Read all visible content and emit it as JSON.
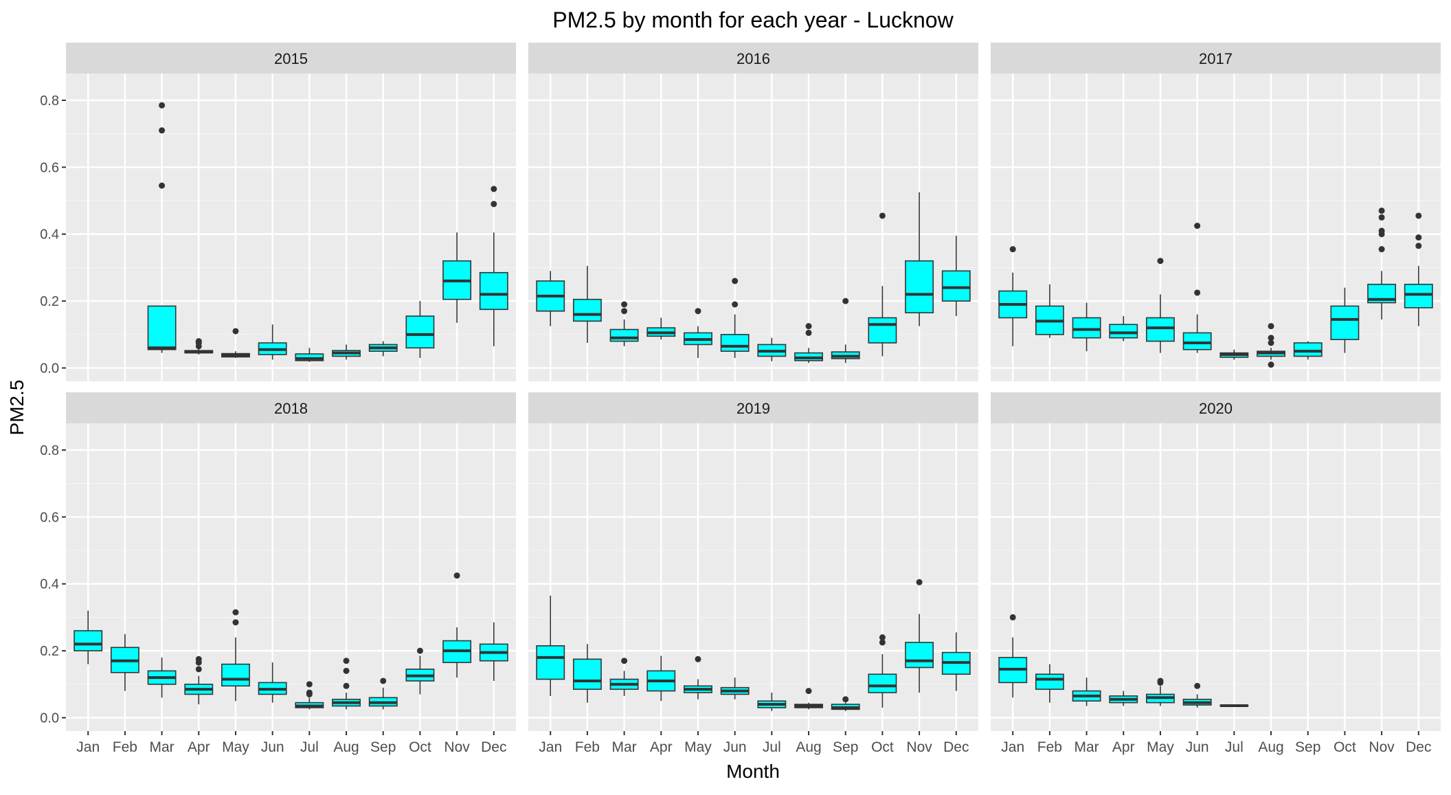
{
  "chart_data": {
    "type": "boxplot",
    "title": "PM2.5 by month for each year - Lucknow",
    "xlabel": "Month",
    "ylabel": "PM2.5",
    "categories": [
      "Jan",
      "Feb",
      "Mar",
      "Apr",
      "May",
      "Jun",
      "Jul",
      "Aug",
      "Sep",
      "Oct",
      "Nov",
      "Dec"
    ],
    "ylim": [
      -0.04,
      0.88
    ],
    "yticks": [
      0.0,
      0.2,
      0.4,
      0.6,
      0.8
    ],
    "ytick_labels": [
      "0.0",
      "0.2",
      "0.4",
      "0.6",
      "0.8"
    ],
    "grid": true,
    "box_fill": "#00FFFF",
    "box_stroke": "#333333",
    "panel_bg": "#EBEBEB",
    "strip_bg": "#D9D9D9",
    "facet_layout": "3 columns x 2 rows",
    "facets": [
      {
        "label": "2015",
        "boxes": [
          null,
          null,
          {
            "whislo": 0.045,
            "q1": 0.055,
            "med": 0.06,
            "q3": 0.185,
            "whishi": 0.185,
            "fliers": [
              0.545,
              0.71,
              0.785
            ]
          },
          {
            "whislo": 0.04,
            "q1": 0.045,
            "med": 0.048,
            "q3": 0.052,
            "whishi": 0.058,
            "fliers": [
              0.065,
              0.075,
              0.08
            ]
          },
          {
            "whislo": 0.03,
            "q1": 0.033,
            "med": 0.038,
            "q3": 0.043,
            "whishi": 0.05,
            "fliers": [
              0.11
            ]
          },
          {
            "whislo": 0.025,
            "q1": 0.04,
            "med": 0.055,
            "q3": 0.075,
            "whishi": 0.13,
            "fliers": []
          },
          {
            "whislo": 0.018,
            "q1": 0.022,
            "med": 0.028,
            "q3": 0.042,
            "whishi": 0.06,
            "fliers": []
          },
          {
            "whislo": 0.025,
            "q1": 0.035,
            "med": 0.045,
            "q3": 0.052,
            "whishi": 0.07,
            "fliers": []
          },
          {
            "whislo": 0.035,
            "q1": 0.05,
            "med": 0.06,
            "q3": 0.07,
            "whishi": 0.08,
            "fliers": []
          },
          {
            "whislo": 0.03,
            "q1": 0.06,
            "med": 0.1,
            "q3": 0.155,
            "whishi": 0.2,
            "fliers": []
          },
          {
            "whislo": 0.135,
            "q1": 0.205,
            "med": 0.26,
            "q3": 0.32,
            "whishi": 0.405,
            "fliers": []
          },
          {
            "whislo": 0.065,
            "q1": 0.175,
            "med": 0.22,
            "q3": 0.285,
            "whishi": 0.405,
            "fliers": [
              0.49,
              0.535
            ]
          }
        ]
      },
      {
        "label": "2016",
        "boxes": [
          {
            "whislo": 0.125,
            "q1": 0.17,
            "med": 0.215,
            "q3": 0.26,
            "whishi": 0.29,
            "fliers": []
          },
          {
            "whislo": 0.075,
            "q1": 0.14,
            "med": 0.16,
            "q3": 0.205,
            "whishi": 0.305,
            "fliers": []
          },
          {
            "whislo": 0.065,
            "q1": 0.08,
            "med": 0.09,
            "q3": 0.115,
            "whishi": 0.145,
            "fliers": [
              0.17,
              0.19
            ]
          },
          {
            "whislo": 0.085,
            "q1": 0.095,
            "med": 0.105,
            "q3": 0.12,
            "whishi": 0.15,
            "fliers": []
          },
          {
            "whislo": 0.03,
            "q1": 0.07,
            "med": 0.085,
            "q3": 0.105,
            "whishi": 0.125,
            "fliers": [
              0.17
            ]
          },
          {
            "whislo": 0.03,
            "q1": 0.05,
            "med": 0.065,
            "q3": 0.1,
            "whishi": 0.16,
            "fliers": [
              0.19,
              0.26
            ]
          },
          {
            "whislo": 0.02,
            "q1": 0.035,
            "med": 0.05,
            "q3": 0.07,
            "whishi": 0.09,
            "fliers": []
          },
          {
            "whislo": 0.015,
            "q1": 0.022,
            "med": 0.03,
            "q3": 0.045,
            "whishi": 0.06,
            "fliers": [
              0.105,
              0.125
            ]
          },
          {
            "whislo": 0.015,
            "q1": 0.028,
            "med": 0.035,
            "q3": 0.048,
            "whishi": 0.07,
            "fliers": [
              0.2
            ]
          },
          {
            "whislo": 0.035,
            "q1": 0.075,
            "med": 0.13,
            "q3": 0.15,
            "whishi": 0.245,
            "fliers": [
              0.455
            ]
          },
          {
            "whislo": 0.125,
            "q1": 0.165,
            "med": 0.22,
            "q3": 0.32,
            "whishi": 0.525,
            "fliers": []
          },
          {
            "whislo": 0.155,
            "q1": 0.2,
            "med": 0.24,
            "q3": 0.29,
            "whishi": 0.395,
            "fliers": []
          }
        ]
      },
      {
        "label": "2017",
        "boxes": [
          {
            "whislo": 0.065,
            "q1": 0.15,
            "med": 0.19,
            "q3": 0.23,
            "whishi": 0.285,
            "fliers": [
              0.355
            ]
          },
          {
            "whislo": 0.09,
            "q1": 0.1,
            "med": 0.14,
            "q3": 0.185,
            "whishi": 0.25,
            "fliers": []
          },
          {
            "whislo": 0.05,
            "q1": 0.09,
            "med": 0.115,
            "q3": 0.15,
            "whishi": 0.195,
            "fliers": []
          },
          {
            "whislo": 0.08,
            "q1": 0.09,
            "med": 0.105,
            "q3": 0.13,
            "whishi": 0.155,
            "fliers": []
          },
          {
            "whislo": 0.045,
            "q1": 0.08,
            "med": 0.12,
            "q3": 0.15,
            "whishi": 0.22,
            "fliers": [
              0.32
            ]
          },
          {
            "whislo": 0.045,
            "q1": 0.055,
            "med": 0.075,
            "q3": 0.105,
            "whishi": 0.16,
            "fliers": [
              0.225,
              0.425
            ]
          },
          {
            "whislo": 0.025,
            "q1": 0.032,
            "med": 0.04,
            "q3": 0.045,
            "whishi": 0.055,
            "fliers": []
          },
          {
            "whislo": 0.025,
            "q1": 0.035,
            "med": 0.045,
            "q3": 0.05,
            "whishi": 0.06,
            "fliers": [
              0.01,
              0.075,
              0.09,
              0.125
            ]
          },
          {
            "whislo": 0.025,
            "q1": 0.035,
            "med": 0.05,
            "q3": 0.075,
            "whishi": 0.08,
            "fliers": []
          },
          {
            "whislo": 0.045,
            "q1": 0.085,
            "med": 0.145,
            "q3": 0.185,
            "whishi": 0.24,
            "fliers": []
          },
          {
            "whislo": 0.145,
            "q1": 0.195,
            "med": 0.205,
            "q3": 0.25,
            "whishi": 0.29,
            "fliers": [
              0.355,
              0.4,
              0.41,
              0.45,
              0.47
            ]
          },
          {
            "whislo": 0.125,
            "q1": 0.18,
            "med": 0.22,
            "q3": 0.25,
            "whishi": 0.305,
            "fliers": [
              0.365,
              0.39,
              0.455
            ]
          }
        ]
      },
      {
        "label": "2018",
        "boxes": [
          {
            "whislo": 0.16,
            "q1": 0.2,
            "med": 0.22,
            "q3": 0.26,
            "whishi": 0.32,
            "fliers": []
          },
          {
            "whislo": 0.08,
            "q1": 0.135,
            "med": 0.17,
            "q3": 0.21,
            "whishi": 0.25,
            "fliers": []
          },
          {
            "whislo": 0.06,
            "q1": 0.1,
            "med": 0.12,
            "q3": 0.14,
            "whishi": 0.18,
            "fliers": []
          },
          {
            "whislo": 0.04,
            "q1": 0.07,
            "med": 0.085,
            "q3": 0.1,
            "whishi": 0.125,
            "fliers": [
              0.145,
              0.165,
              0.175
            ]
          },
          {
            "whislo": 0.05,
            "q1": 0.095,
            "med": 0.115,
            "q3": 0.16,
            "whishi": 0.24,
            "fliers": [
              0.285,
              0.315
            ]
          },
          {
            "whislo": 0.045,
            "q1": 0.07,
            "med": 0.085,
            "q3": 0.105,
            "whishi": 0.165,
            "fliers": []
          },
          {
            "whislo": 0.025,
            "q1": 0.03,
            "med": 0.035,
            "q3": 0.045,
            "whishi": 0.06,
            "fliers": [
              0.07,
              0.075,
              0.1
            ]
          },
          {
            "whislo": 0.025,
            "q1": 0.035,
            "med": 0.045,
            "q3": 0.055,
            "whishi": 0.075,
            "fliers": [
              0.095,
              0.14,
              0.17
            ]
          },
          {
            "whislo": 0.025,
            "q1": 0.035,
            "med": 0.045,
            "q3": 0.06,
            "whishi": 0.09,
            "fliers": [
              0.11
            ]
          },
          {
            "whislo": 0.07,
            "q1": 0.11,
            "med": 0.125,
            "q3": 0.145,
            "whishi": 0.185,
            "fliers": [
              0.2
            ]
          },
          {
            "whislo": 0.12,
            "q1": 0.165,
            "med": 0.2,
            "q3": 0.23,
            "whishi": 0.27,
            "fliers": [
              0.425
            ]
          },
          {
            "whislo": 0.11,
            "q1": 0.17,
            "med": 0.195,
            "q3": 0.22,
            "whishi": 0.285,
            "fliers": []
          }
        ]
      },
      {
        "label": "2019",
        "boxes": [
          {
            "whislo": 0.065,
            "q1": 0.115,
            "med": 0.18,
            "q3": 0.215,
            "whishi": 0.365,
            "fliers": []
          },
          {
            "whislo": 0.045,
            "q1": 0.085,
            "med": 0.11,
            "q3": 0.175,
            "whishi": 0.22,
            "fliers": []
          },
          {
            "whislo": 0.065,
            "q1": 0.085,
            "med": 0.1,
            "q3": 0.115,
            "whishi": 0.14,
            "fliers": [
              0.17
            ]
          },
          {
            "whislo": 0.05,
            "q1": 0.08,
            "med": 0.11,
            "q3": 0.14,
            "whishi": 0.185,
            "fliers": []
          },
          {
            "whislo": 0.055,
            "q1": 0.075,
            "med": 0.085,
            "q3": 0.095,
            "whishi": 0.115,
            "fliers": [
              0.175
            ]
          },
          {
            "whislo": 0.055,
            "q1": 0.07,
            "med": 0.08,
            "q3": 0.09,
            "whishi": 0.12,
            "fliers": []
          },
          {
            "whislo": 0.02,
            "q1": 0.03,
            "med": 0.04,
            "q3": 0.05,
            "whishi": 0.075,
            "fliers": []
          },
          {
            "whislo": 0.025,
            "q1": 0.03,
            "med": 0.035,
            "q3": 0.04,
            "whishi": 0.045,
            "fliers": [
              0.08
            ]
          },
          {
            "whislo": 0.02,
            "q1": 0.025,
            "med": 0.03,
            "q3": 0.04,
            "whishi": 0.045,
            "fliers": [
              0.055
            ]
          },
          {
            "whislo": 0.03,
            "q1": 0.075,
            "med": 0.095,
            "q3": 0.13,
            "whishi": 0.19,
            "fliers": [
              0.225,
              0.24
            ]
          },
          {
            "whislo": 0.075,
            "q1": 0.15,
            "med": 0.17,
            "q3": 0.225,
            "whishi": 0.31,
            "fliers": [
              0.405
            ]
          },
          {
            "whislo": 0.08,
            "q1": 0.13,
            "med": 0.165,
            "q3": 0.195,
            "whishi": 0.255,
            "fliers": []
          }
        ]
      },
      {
        "label": "2020",
        "boxes": [
          {
            "whislo": 0.06,
            "q1": 0.105,
            "med": 0.145,
            "q3": 0.18,
            "whishi": 0.24,
            "fliers": [
              0.3
            ]
          },
          {
            "whislo": 0.045,
            "q1": 0.085,
            "med": 0.115,
            "q3": 0.13,
            "whishi": 0.16,
            "fliers": []
          },
          {
            "whislo": 0.035,
            "q1": 0.05,
            "med": 0.065,
            "q3": 0.08,
            "whishi": 0.12,
            "fliers": []
          },
          {
            "whislo": 0.035,
            "q1": 0.045,
            "med": 0.055,
            "q3": 0.065,
            "whishi": 0.08,
            "fliers": []
          },
          {
            "whislo": 0.035,
            "q1": 0.045,
            "med": 0.06,
            "q3": 0.07,
            "whishi": 0.095,
            "fliers": [
              0.105,
              0.11
            ]
          },
          {
            "whislo": 0.03,
            "q1": 0.038,
            "med": 0.045,
            "q3": 0.055,
            "whishi": 0.07,
            "fliers": [
              0.095
            ]
          },
          {
            "whislo": 0.033,
            "q1": 0.035,
            "med": 0.036,
            "q3": 0.037,
            "whishi": 0.038,
            "fliers": []
          },
          null,
          null,
          null,
          null,
          null
        ]
      }
    ]
  }
}
